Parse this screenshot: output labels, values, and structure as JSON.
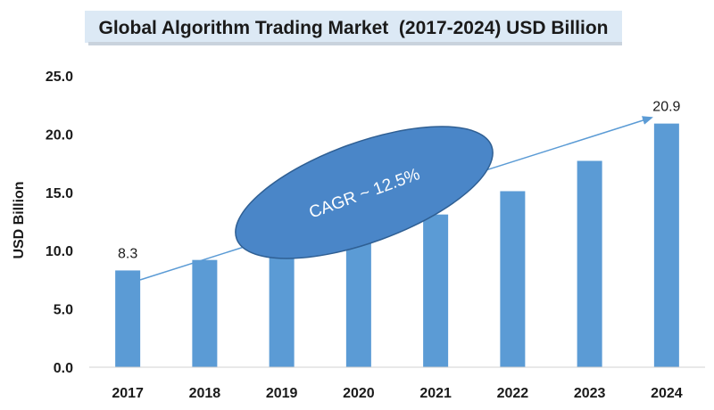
{
  "colors": {
    "bar": "#5b9bd5",
    "title_band": "#dce9f5",
    "arrow": "#5b9bd5",
    "ellipse_fill": "#4a86c8",
    "ellipse_stroke": "#2f5f93"
  },
  "chart_data": {
    "type": "bar",
    "title": "Global Algorithm Trading Market  (2017-2024) USD Billion",
    "xlabel": "",
    "ylabel": "USD Billion",
    "categories": [
      "2017",
      "2018",
      "2019",
      "2020",
      "2021",
      "2022",
      "2023",
      "2024"
    ],
    "values": [
      8.3,
      9.2,
      10.3,
      11.7,
      13.1,
      15.1,
      17.7,
      20.9
    ],
    "ylim": [
      0,
      25
    ],
    "yticks": [
      "0.0",
      "5.0",
      "10.0",
      "15.0",
      "20.0",
      "25.0"
    ],
    "data_labels": {
      "2017": "8.3",
      "2024": "20.9"
    },
    "annotation": "CAGR ~ 12.5%",
    "grid": false,
    "legend": "none"
  }
}
